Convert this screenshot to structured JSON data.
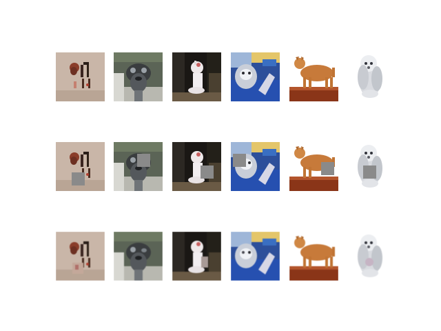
{
  "figure": {
    "rows": [
      "original",
      "masked",
      "reconstructed"
    ],
    "images": [
      {
        "subject": "horse-figurine-and-dog-on-beige-paper",
        "masked_patch": "lower-left"
      },
      {
        "subject": "grey-dog-close-up",
        "masked_patch": "upper-right"
      },
      {
        "subject": "white-cat-sitting-in-dark-room",
        "masked_patch": "lower-right"
      },
      {
        "subject": "husky-with-blue-hand",
        "masked_patch": "upper-left"
      },
      {
        "subject": "orange-cat-standing",
        "masked_patch": "lower-right"
      },
      {
        "subject": "white-fluffy-dog",
        "masked_patch": "center"
      }
    ],
    "colors": {
      "background": "#ffffff",
      "mask_patch": "#8a8a8a"
    }
  }
}
